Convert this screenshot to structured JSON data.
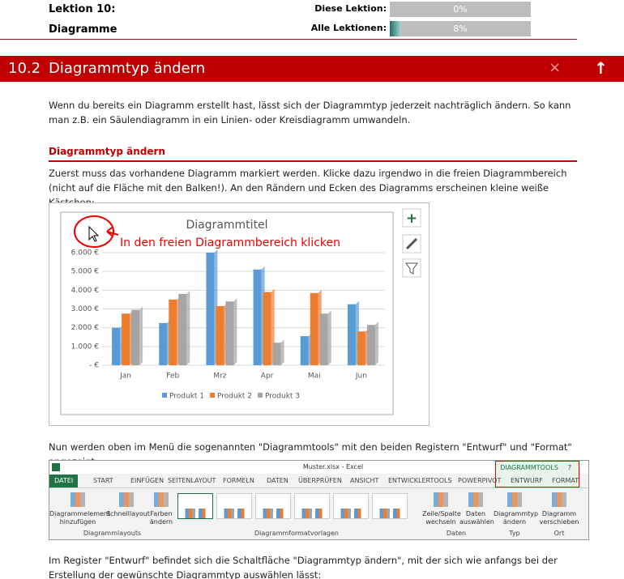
{
  "header": {
    "lesson": "Lektion 10:",
    "topic": "Diagramme",
    "progress": [
      {
        "label": "Diese Lektion:",
        "value": 0,
        "value_label": "0%"
      },
      {
        "label": "Alle Lektionen:",
        "value": 8,
        "value_label": "8%"
      }
    ]
  },
  "section": {
    "number": "10.2",
    "title": "Diagrammtyp ändern",
    "close": "×",
    "up": "↑"
  },
  "intro": "Wenn du bereits ein Diagramm erstellt hast, lässt sich der Diagrammtyp jederzeit nachträglich ändern. So kann man z.B. ein Säulendiagramm in ein Linien- oder Kreisdiagramm umwandeln.",
  "subheading": "Diagrammtyp ändern",
  "step1": "Zuerst muss das vorhandene Diagramm markiert werden. Klicke dazu irgendwo in die freien Diagrammbereich (nicht auf die Fläche mit den Balken!). An den Rändern und Ecken des Diagramms erscheinen kleine weiße Kästchen:",
  "figure": {
    "type": "bar",
    "title": "Diagrammtitel",
    "annotation": "In den freien Diagrammbereich klicken",
    "categories": [
      "Jan",
      "Feb",
      "Mrz",
      "Apr",
      "Mai",
      "Jun"
    ],
    "series": [
      {
        "name": "Produkt 1",
        "color": "#5b9bd5",
        "values": [
          2000,
          2250,
          6000,
          5100,
          1550,
          3250
        ]
      },
      {
        "name": "Produkt 2",
        "color": "#ed7d31",
        "values": [
          2750,
          3500,
          3150,
          3900,
          3850,
          1800
        ]
      },
      {
        "name": "Produkt 3",
        "color": "#a5a5a5",
        "values": [
          2950,
          3800,
          3400,
          1200,
          2750,
          2150
        ]
      }
    ],
    "ylim": [
      0,
      6000
    ],
    "yticks": [
      {
        "value": 0,
        "label": "- €"
      },
      {
        "value": 1000,
        "label": "1.000 €"
      },
      {
        "value": 2000,
        "label": "2.000 €"
      },
      {
        "value": 3000,
        "label": "3.000 €"
      },
      {
        "value": 4000,
        "label": "4.000 €"
      },
      {
        "value": 5000,
        "label": "5.000 €"
      },
      {
        "value": 6000,
        "label": "6.000 €"
      }
    ],
    "grid": true,
    "side_buttons": [
      "+"
    ]
  },
  "step2": "Nun werden oben im Menü die sogenannten \"Diagrammtools\" mit den beiden Registern \"Entwurf\" und \"Format\" angezeigt:",
  "ribbon": {
    "window_title": "Muster.xlsx - Excel",
    "context": "DIAGRAMMTOOLS",
    "help": "?",
    "tabs": [
      "DATEI",
      "START",
      "EINFÜGEN",
      "SEITENLAYOUT",
      "FORMELN",
      "DATEN",
      "ÜBERPRÜFEN",
      "ANSICHT",
      "ENTWICKLERTOOLS",
      "POWERPIVOT",
      "ENTWURF",
      "FORMAT"
    ],
    "buttons": [
      "Diagrammelement hinzufügen",
      "Schnelllayout",
      "Farben ändern",
      "Zeile/Spalte wechseln",
      "Daten auswählen",
      "Diagrammtyp ändern",
      "Diagramm verschieben"
    ],
    "groups": [
      "Diagrammlayouts",
      "Diagrammformatvorlagen",
      "Daten",
      "Typ",
      "Ort"
    ]
  },
  "step3": "Im Register \"Entwurf\" befindet sich die Schaltfläche \"Diagrammtyp ändern\", mit der sich wie anfangs bei der Erstellung der gewünschte Diagrammtyp auswählen lässt:"
}
